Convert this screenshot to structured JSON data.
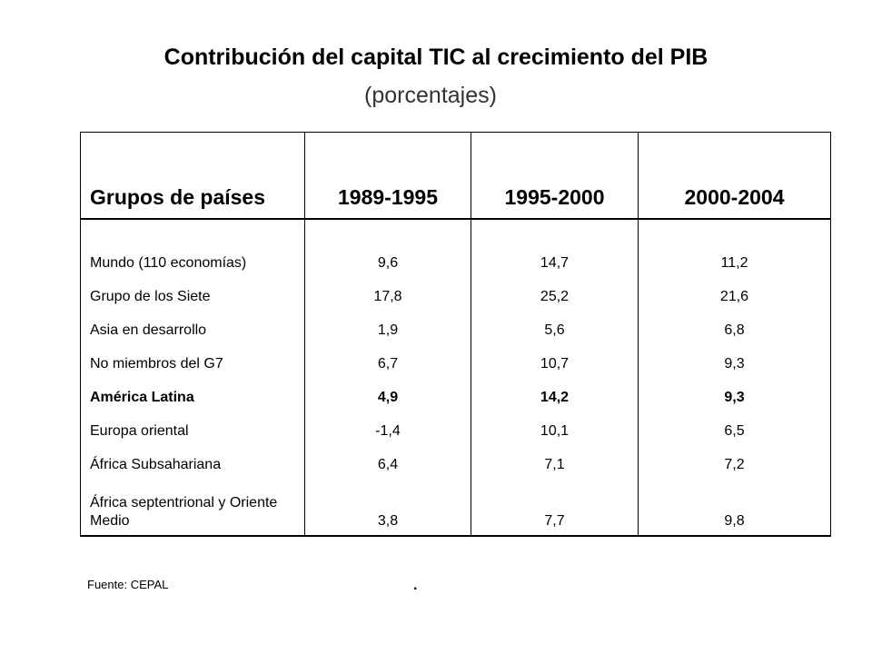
{
  "title": "Contribución del capital TIC al crecimiento del PIB",
  "subtitle": "(porcentajes)",
  "table": {
    "headers": [
      "Grupos de países",
      "1989-1995",
      "1995-2000",
      "2000-2004"
    ],
    "rows": [
      {
        "label": "Mundo (110 economías)",
        "values": [
          "9,6",
          "14,7",
          "11,2"
        ],
        "bold": false
      },
      {
        "label": "Grupo de los Siete",
        "values": [
          "17,8",
          "25,2",
          "21,6"
        ],
        "bold": false
      },
      {
        "label": "Asia en desarrollo",
        "values": [
          "1,9",
          "5,6",
          "6,8"
        ],
        "bold": false
      },
      {
        "label": "No miembros del G7",
        "values": [
          "6,7",
          "10,7",
          "9,3"
        ],
        "bold": false
      },
      {
        "label": "América Latina",
        "values": [
          "4,9",
          "14,2",
          "9,3"
        ],
        "bold": true
      },
      {
        "label": "Europa oriental",
        "values": [
          "-1,4",
          "10,1",
          "6,5"
        ],
        "bold": false
      },
      {
        "label": "África Subsahariana",
        "values": [
          "6,4",
          "7,1",
          "7,2"
        ],
        "bold": false
      },
      {
        "label": "África septentrional y Oriente Medio",
        "values": [
          "3,8",
          "7,7",
          "9,8"
        ],
        "bold": false
      }
    ]
  },
  "source": "Fuente: CEPAL",
  "mark": "."
}
